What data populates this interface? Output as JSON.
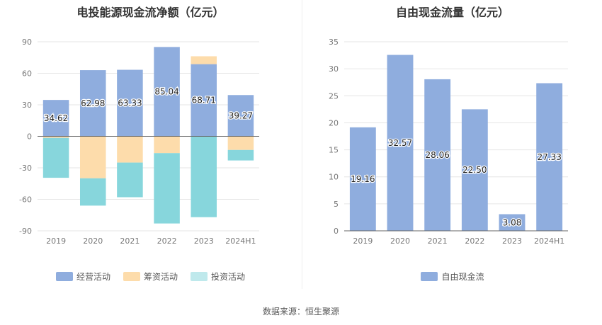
{
  "colors": {
    "operating": "#8fadde",
    "financing": "#fddcab",
    "investing": "#87d6dc",
    "fcf": "#8fadde",
    "legend_investing": "#bfe9ec"
  },
  "source": "数据来源：恒生聚源",
  "chart_data": [
    {
      "type": "bar",
      "title": "电投能源现金流净额（亿元）",
      "categories": [
        "2019",
        "2020",
        "2021",
        "2022",
        "2023",
        "2024H1"
      ],
      "ylim": [
        -90,
        90
      ],
      "yticks": [
        90,
        60,
        30,
        0,
        -30,
        -60,
        -90
      ],
      "grid": true,
      "legend_placement": "bottom",
      "series": [
        {
          "name": "经营活动",
          "values": [
            34.62,
            62.98,
            63.33,
            85.04,
            68.71,
            39.27
          ],
          "color_key": "operating"
        },
        {
          "name": "筹资活动",
          "values": [
            -1.5,
            -40,
            -25,
            -16,
            7.5,
            -13
          ],
          "color_key": "financing"
        },
        {
          "name": "投资活动",
          "values": [
            -38,
            -26,
            -33,
            -67,
            -77,
            -10
          ],
          "color_key": "investing"
        }
      ],
      "data_labels": [
        "34.62",
        "62.98",
        "63.33",
        "85.04",
        "68.71",
        "39.27"
      ]
    },
    {
      "type": "bar",
      "title": "自由现金流量（亿元）",
      "categories": [
        "2019",
        "2020",
        "2021",
        "2022",
        "2023",
        "2024H1"
      ],
      "ylim": [
        0,
        35
      ],
      "yticks": [
        35,
        30,
        25,
        20,
        15,
        10,
        5,
        0
      ],
      "grid": true,
      "legend_placement": "bottom",
      "series": [
        {
          "name": "自由现金流",
          "values": [
            19.16,
            32.57,
            28.06,
            22.5,
            3.08,
            27.33
          ],
          "color_key": "fcf"
        }
      ],
      "data_labels": [
        "19.16",
        "32.57",
        "28.06",
        "22.50",
        "3.08",
        "27.33"
      ]
    }
  ]
}
